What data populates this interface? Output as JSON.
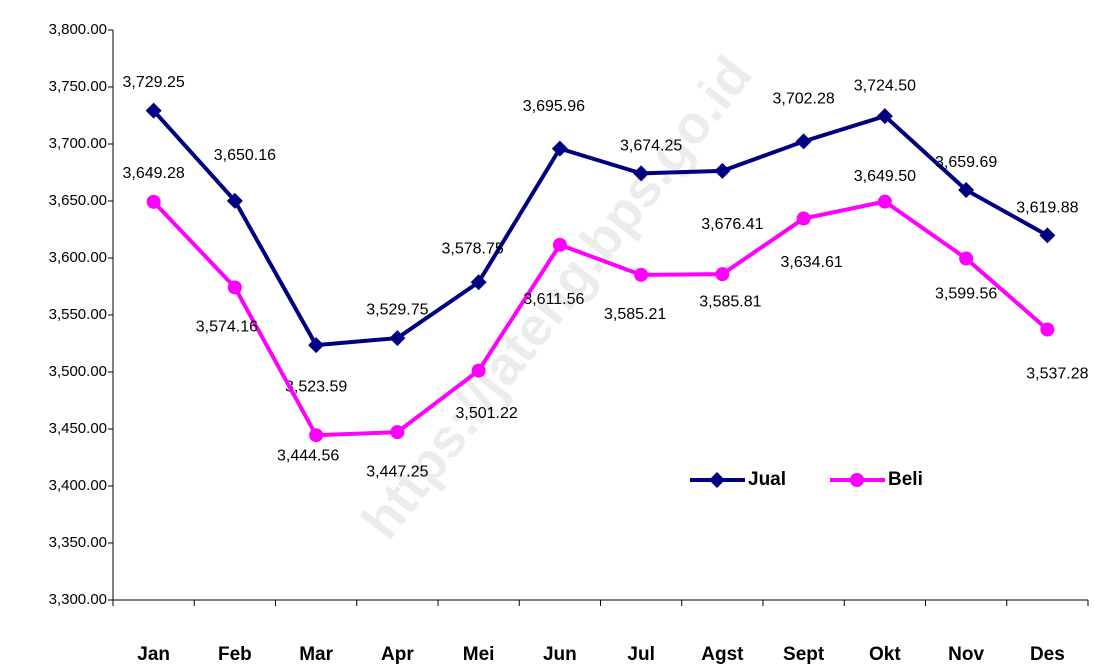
{
  "chart_data": {
    "type": "line",
    "watermark": "https://jateng.bps.go.id",
    "categories": [
      "Jan",
      "Feb",
      "Mar",
      "Apr",
      "Mei",
      "Jun",
      "Jul",
      "Agst",
      "Sept",
      "Okt",
      "Nov",
      "Des"
    ],
    "series": [
      {
        "name": "Jual",
        "color": "#000080",
        "marker": "diamond",
        "values": [
          3729.25,
          3650.16,
          3523.59,
          3529.75,
          3578.75,
          3695.96,
          3674.25,
          3676.41,
          3702.28,
          3724.5,
          3659.69,
          3619.88
        ],
        "value_labels": [
          "3,729.25",
          "3,650.16",
          "3,523.59",
          "3,529.75",
          "3,578.75",
          "3,695.96",
          "3,674.25",
          "3,676.41",
          "3,702.28",
          "3,724.50",
          "3,659.69",
          "3,619.88"
        ]
      },
      {
        "name": "Beli",
        "color": "#ff00ff",
        "marker": "circle",
        "values": [
          3649.28,
          3574.16,
          3444.56,
          3447.25,
          3501.22,
          3611.56,
          3585.21,
          3585.81,
          3634.61,
          3649.5,
          3599.56,
          3537.28
        ],
        "value_labels": [
          "3,649.28",
          "3,574.16",
          "3,444.56",
          "3,447.25",
          "3,501.22",
          "3,611.56",
          "3,585.21",
          "3,585.81",
          "3,634.61",
          "3,649.50",
          "3,599.56",
          "3,537.28"
        ]
      }
    ],
    "ylim": [
      3300,
      3800
    ],
    "yticks": [
      {
        "value": 3300,
        "label": "3,300.00"
      },
      {
        "value": 3350,
        "label": "3,350.00"
      },
      {
        "value": 3400,
        "label": "3,400.00"
      },
      {
        "value": 3450,
        "label": "3,450.00"
      },
      {
        "value": 3500,
        "label": "3,500.00"
      },
      {
        "value": 3550,
        "label": "3,550.00"
      },
      {
        "value": 3600,
        "label": "3,600.00"
      },
      {
        "value": 3650,
        "label": "3,650.00"
      },
      {
        "value": 3700,
        "label": "3,700.00"
      },
      {
        "value": 3750,
        "label": "3,750.00"
      },
      {
        "value": 3800,
        "label": "3,800.00"
      }
    ],
    "grid": false,
    "legend": "inside-lower-right"
  }
}
